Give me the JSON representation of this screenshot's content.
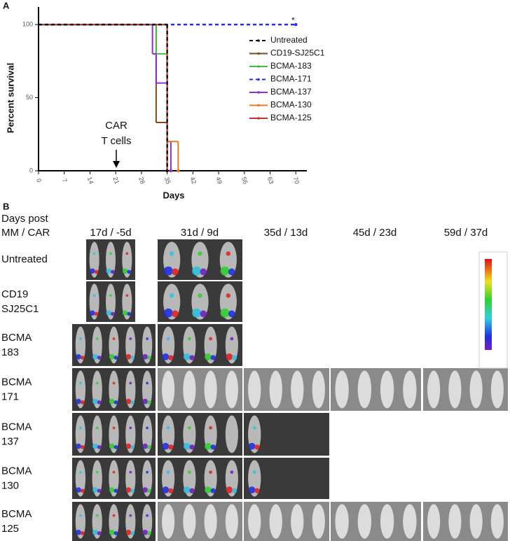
{
  "chart_data": {
    "type": "step",
    "panel_label": "A",
    "x_label": "Days",
    "y_label": "Percent survival",
    "annotations": [
      "CAR",
      "T  cells",
      "*"
    ],
    "xlim": [
      0,
      73
    ],
    "xticks": [
      0,
      7,
      14,
      21,
      28,
      35,
      42,
      49,
      56,
      63,
      70
    ],
    "ylim": [
      0,
      112
    ],
    "yticks": [
      0,
      50,
      100
    ],
    "series": [
      {
        "name": "CD19-SJ25C1",
        "color": "#7b4a1f",
        "line_style": "solid",
        "x": [
          0,
          32,
          35
        ],
        "values": [
          100,
          33,
          0
        ]
      },
      {
        "name": "BCMA-183",
        "color": "#3fbf3f",
        "line_style": "solid",
        "x": [
          0,
          32,
          35
        ],
        "values": [
          100,
          80,
          0
        ]
      },
      {
        "name": "BCMA-137",
        "color": "#8b2fd6",
        "line_style": "solid",
        "x": [
          0,
          31,
          32,
          35,
          36
        ],
        "values": [
          100,
          80,
          60,
          20,
          0
        ]
      },
      {
        "name": "BCMA-130",
        "color": "#ea7a22",
        "line_style": "solid",
        "x": [
          0,
          35,
          38
        ],
        "values": [
          100,
          20,
          0
        ]
      },
      {
        "name": "BCMA-125",
        "color": "#c8322a",
        "line_style": "solid",
        "x": [
          0,
          35
        ],
        "values": [
          100,
          0
        ]
      },
      {
        "name": "BCMA-171",
        "color": "#2a2ee0",
        "line_style": "dashed",
        "x": [
          0,
          70
        ],
        "values": [
          100,
          100
        ]
      },
      {
        "name": "Untreated",
        "color": "#111111",
        "line_style": "dashed",
        "x": [
          0,
          35
        ],
        "values": [
          100,
          0
        ]
      }
    ],
    "legend_order": [
      6,
      0,
      1,
      5,
      2,
      3,
      4
    ]
  },
  "panel_b": {
    "panel_label": "B",
    "row_header": [
      "Days post",
      "MM / CAR"
    ],
    "columns": [
      "17d / -5d",
      "31d / 9d",
      "35d / 13d",
      "45d / 23d",
      "59d / 37d"
    ],
    "rows": [
      [
        "Untreated"
      ],
      [
        "CD19",
        "SJ25C1"
      ],
      [
        "BCMA",
        "183"
      ],
      [
        "BCMA",
        "171"
      ],
      [
        "BCMA",
        "137"
      ],
      [
        "BCMA",
        "130"
      ],
      [
        "BCMA",
        "125"
      ]
    ]
  }
}
